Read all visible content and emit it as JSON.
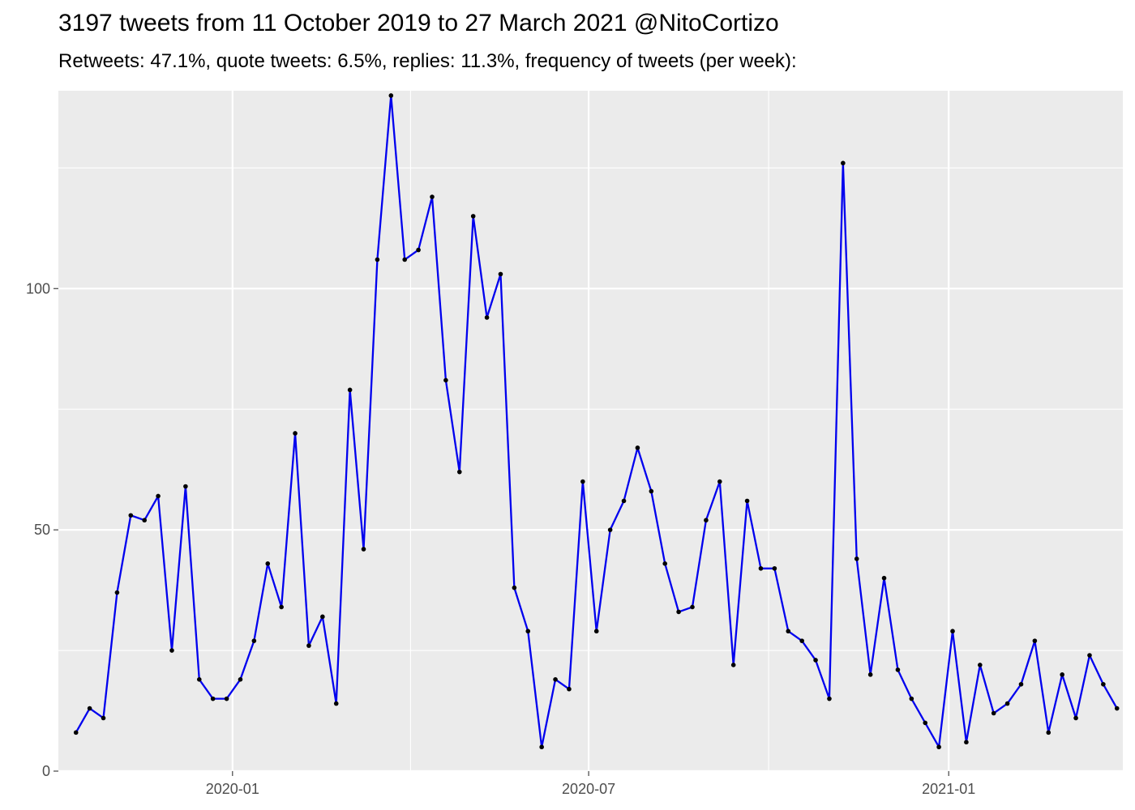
{
  "chart_data": {
    "type": "line",
    "title": "3197 tweets from 11 October 2019 to 27 March 2021 @NitoCortizo",
    "subtitle": "Retweets: 47.1%, quote tweets: 6.5%, replies: 11.3%, frequency of tweets (per week):",
    "xlabel": "",
    "ylabel": "",
    "x_start": "2019-10-13",
    "x_step_days": 7,
    "xlim": [
      "2019-10-04",
      "2021-03-31"
    ],
    "ylim": [
      0,
      141
    ],
    "x_ticks": [
      {
        "date": "2020-01-01",
        "label": "2020-01"
      },
      {
        "date": "2020-07-01",
        "label": "2020-07"
      },
      {
        "date": "2021-01-01",
        "label": "2021-01"
      }
    ],
    "x_minor_ticks": [
      "2019-10-01",
      "2020-04-01",
      "2020-10-01",
      "2021-04-01"
    ],
    "y_ticks": [
      0,
      50,
      100
    ],
    "y_minor_ticks": [
      25,
      75,
      125
    ],
    "values": [
      8,
      13,
      11,
      37,
      53,
      52,
      57,
      25,
      59,
      19,
      15,
      15,
      19,
      27,
      43,
      34,
      70,
      26,
      32,
      14,
      79,
      46,
      106,
      140,
      106,
      108,
      119,
      81,
      62,
      115,
      94,
      103,
      38,
      29,
      5,
      19,
      17,
      60,
      29,
      50,
      56,
      67,
      58,
      43,
      33,
      34,
      52,
      60,
      22,
      56,
      42,
      42,
      29,
      27,
      23,
      15,
      126,
      44,
      20,
      40,
      21,
      15,
      10,
      5,
      29,
      6,
      22,
      12,
      14,
      18,
      27,
      8,
      20,
      11,
      24,
      18,
      13
    ],
    "grid": true,
    "line_color": "#0000ee",
    "point_color": "#000000",
    "panel_color": "#ebebeb",
    "grid_color": "#ffffff"
  }
}
